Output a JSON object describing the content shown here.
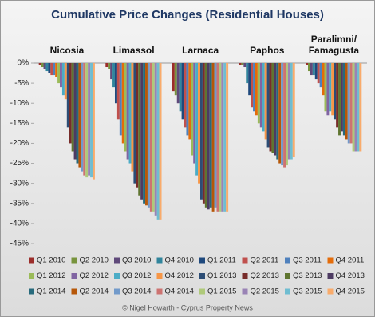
{
  "chart_data": {
    "type": "bar",
    "title": "Cumulative Price Changes (Residential Houses)",
    "categories": [
      "Nicosia",
      "Limassol",
      "Larnaca",
      "Paphos",
      "Paralimni/ Famagusta"
    ],
    "ylim": [
      -45,
      0
    ],
    "yticks": [
      {
        "value": 0,
        "label": "0%"
      },
      {
        "value": -5,
        "label": "-5%"
      },
      {
        "value": -10,
        "label": "-10%"
      },
      {
        "value": -15,
        "label": "-15%"
      },
      {
        "value": -20,
        "label": "-20%"
      },
      {
        "value": -25,
        "label": "-25%"
      },
      {
        "value": -30,
        "label": "-30%"
      },
      {
        "value": -35,
        "label": "-35%"
      },
      {
        "value": -40,
        "label": "-40%"
      },
      {
        "value": -45,
        "label": "-45%"
      }
    ],
    "grid": false,
    "series": [
      {
        "name": "Q1 2010",
        "color": "#9B2D2A",
        "values": [
          -0.5,
          -1,
          -7,
          -0.5,
          -0.5
        ]
      },
      {
        "name": "Q2 2010",
        "color": "#77933C",
        "values": [
          -1,
          -1.5,
          -8,
          -0.5,
          -2
        ]
      },
      {
        "name": "Q3 2010",
        "color": "#5F497A",
        "values": [
          -1.5,
          -4,
          -10,
          -1,
          -3
        ]
      },
      {
        "name": "Q4 2010",
        "color": "#31859C",
        "values": [
          -2,
          -6,
          -12,
          -5,
          -3
        ]
      },
      {
        "name": "Q1 2011",
        "color": "#1F497D",
        "values": [
          -2.5,
          -10,
          -14,
          -8,
          -4
        ]
      },
      {
        "name": "Q2 2011",
        "color": "#C0504D",
        "values": [
          -3,
          -14,
          -16,
          -11,
          -5
        ]
      },
      {
        "name": "Q3 2011",
        "color": "#4F81BD",
        "values": [
          -3,
          -18,
          -18,
          -12,
          -6
        ]
      },
      {
        "name": "Q4 2011",
        "color": "#E46C0A",
        "values": [
          -3.5,
          -20,
          -19,
          -13,
          -8
        ]
      },
      {
        "name": "Q1 2012",
        "color": "#9BBB59",
        "values": [
          -5,
          -22,
          -23,
          -15,
          -12
        ]
      },
      {
        "name": "Q2 2012",
        "color": "#8064A2",
        "values": [
          -6,
          -24,
          -25,
          -16,
          -13
        ]
      },
      {
        "name": "Q3 2012",
        "color": "#4BACC6",
        "values": [
          -8,
          -25,
          -28,
          -17,
          -12
        ]
      },
      {
        "name": "Q4 2012",
        "color": "#F79646",
        "values": [
          -9,
          -27,
          -30,
          -19,
          -13
        ]
      },
      {
        "name": "Q1 2013",
        "color": "#2C4D75",
        "values": [
          -16,
          -30,
          -34,
          -21,
          -14
        ]
      },
      {
        "name": "Q2 2013",
        "color": "#772C2A",
        "values": [
          -20,
          -31,
          -35,
          -22,
          -16
        ]
      },
      {
        "name": "Q3 2013",
        "color": "#5F7530",
        "values": [
          -22,
          -33,
          -36,
          -22.5,
          -18
        ]
      },
      {
        "name": "Q4 2013",
        "color": "#4D3B62",
        "values": [
          -24,
          -34,
          -36.5,
          -23,
          -17
        ]
      },
      {
        "name": "Q1 2014",
        "color": "#276A7C",
        "values": [
          -25,
          -35,
          -36,
          -24,
          -18
        ]
      },
      {
        "name": "Q2 2014",
        "color": "#B65708",
        "values": [
          -26,
          -35.5,
          -37,
          -25,
          -19
        ]
      },
      {
        "name": "Q3 2014",
        "color": "#729ACA",
        "values": [
          -27,
          -36,
          -36,
          -25.5,
          -20
        ]
      },
      {
        "name": "Q4 2014",
        "color": "#CD7371",
        "values": [
          -28,
          -37,
          -37,
          -26,
          -20
        ]
      },
      {
        "name": "Q1 2015",
        "color": "#AFC97A",
        "values": [
          -28.5,
          -37,
          -37,
          -25.5,
          -22
        ]
      },
      {
        "name": "Q2 2015",
        "color": "#9983B5",
        "values": [
          -28,
          -38,
          -37,
          -24,
          -22
        ]
      },
      {
        "name": "Q3 2015",
        "color": "#6FBDD1",
        "values": [
          -28.5,
          -39,
          -37,
          -24,
          -22
        ]
      },
      {
        "name": "Q4 2015",
        "color": "#F9AB6B",
        "values": [
          -29,
          -39,
          -37,
          -23.5,
          -22
        ]
      }
    ]
  },
  "footer": "© Nigel Howarth - Cyprus Property News"
}
